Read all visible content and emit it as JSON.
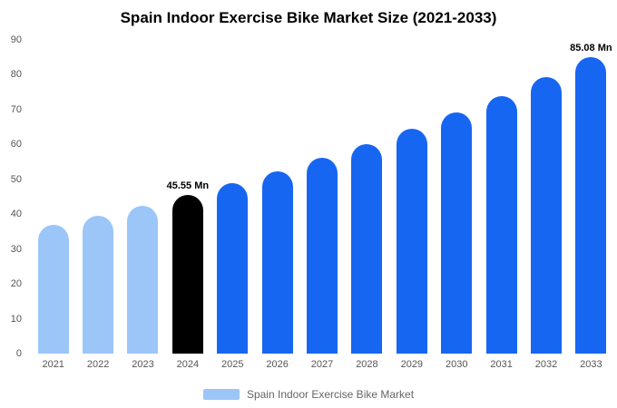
{
  "title": "Spain Indoor Exercise Bike Market Size (2021-2033)",
  "legend": {
    "label": "Spain Indoor Exercise Bike Market",
    "swatch_color": "#9cc6f8"
  },
  "colors": {
    "light_blue": "#9cc6f8",
    "primary_blue": "#1766f2",
    "highlight_black": "#000000",
    "axis_text": "#555555",
    "background": "#ffffff"
  },
  "chart_data": {
    "type": "bar",
    "title": "Spain Indoor Exercise Bike Market Size (2021-2033)",
    "categories": [
      "2021",
      "2022",
      "2023",
      "2024",
      "2025",
      "2026",
      "2027",
      "2028",
      "2029",
      "2030",
      "2031",
      "2032",
      "2033"
    ],
    "values": [
      37.0,
      39.6,
      42.5,
      45.55,
      48.8,
      52.3,
      56.1,
      60.1,
      64.4,
      69.1,
      74.0,
      79.4,
      85.08
    ],
    "point_colors": [
      "#9cc6f8",
      "#9cc6f8",
      "#9cc6f8",
      "#000000",
      "#1766f2",
      "#1766f2",
      "#1766f2",
      "#1766f2",
      "#1766f2",
      "#1766f2",
      "#1766f2",
      "#1766f2",
      "#1766f2"
    ],
    "data_labels": [
      "",
      "",
      "",
      "45.55 Mn",
      "",
      "",
      "",
      "",
      "",
      "",
      "",
      "",
      "85.08 Mn"
    ],
    "xlabel": "",
    "ylabel": "",
    "ylim": [
      0,
      90
    ],
    "yticks": [
      0,
      10,
      20,
      30,
      40,
      50,
      60,
      70,
      80,
      90
    ],
    "grid": false,
    "legend_position": "bottom",
    "legend_entries": [
      "Spain Indoor Exercise Bike Market"
    ]
  }
}
